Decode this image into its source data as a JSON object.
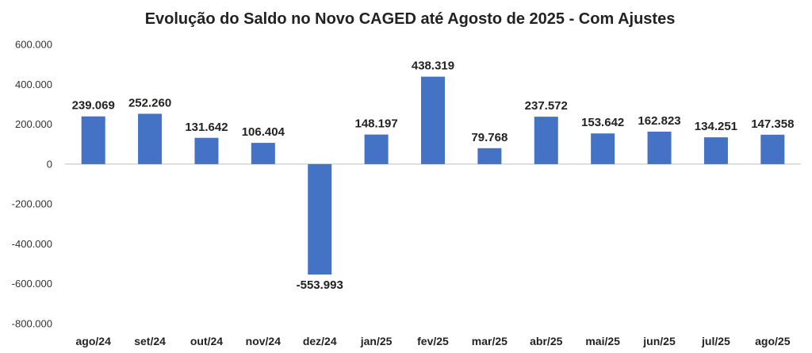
{
  "chart_data": {
    "type": "bar",
    "title": "Evolução do Saldo no Novo CAGED até Agosto de 2025 - Com Ajustes",
    "xlabel": "",
    "ylabel": "",
    "ylim": [
      -800000,
      600000
    ],
    "yticks": [
      600000,
      400000,
      200000,
      0,
      -200000,
      -400000,
      -600000,
      -800000
    ],
    "ytick_labels": [
      "600.000",
      "400.000",
      "200.000",
      "0",
      "-200.000",
      "-400.000",
      "-600.000",
      "-800.000"
    ],
    "categories": [
      "ago/24",
      "set/24",
      "out/24",
      "nov/24",
      "dez/24",
      "jan/25",
      "fev/25",
      "mar/25",
      "abr/25",
      "mai/25",
      "jun/25",
      "jul/25",
      "ago/25"
    ],
    "values": [
      239069,
      252260,
      131642,
      106404,
      -553993,
      148197,
      438319,
      79768,
      237572,
      153642,
      162823,
      134251,
      147358
    ],
    "value_labels": [
      "239.069",
      "252.260",
      "131.642",
      "106.404",
      "-553.993",
      "148.197",
      "438.319",
      "79.768",
      "237.572",
      "153.642",
      "162.823",
      "134.251",
      "147.358"
    ],
    "bar_color": "#4472C4",
    "grid": false
  }
}
